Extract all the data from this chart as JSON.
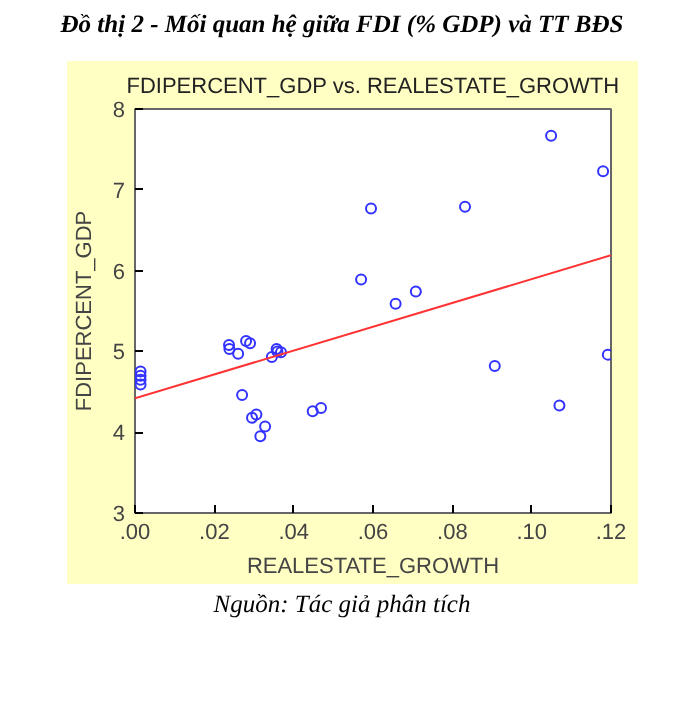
{
  "chart_data": {
    "type": "scatter",
    "title": "FDIPERCENT_GDP vs. REALESTATE_GROWTH",
    "xlabel": "REALESTATE_GROWTH",
    "ylabel": "FDIPERCENT_GDP",
    "annotations": [
      "Đồ thị 2 -  Mối quan hệ giữa FDI (% GDP) và TT BĐS",
      "Nguồn: Tác giả phân tích"
    ],
    "xlim": [
      0,
      0.12
    ],
    "ylim": [
      3,
      8
    ],
    "xticks": [
      {
        "value": 0,
        "label": ".00"
      },
      {
        "value": 0.02,
        "label": ".02"
      },
      {
        "value": 0.04,
        "label": ".04"
      },
      {
        "value": 0.06,
        "label": ".06"
      },
      {
        "value": 0.08,
        "label": ".08"
      },
      {
        "value": 0.1,
        "label": ".10"
      },
      {
        "value": 0.12,
        "label": ".12"
      }
    ],
    "yticks": [
      3,
      4,
      5,
      6,
      7,
      8
    ],
    "grid": false,
    "series": [
      {
        "color": "#3333ff",
        "marker": "circle",
        "x": [
          0.0014,
          0.0014,
          0.0014,
          0.0014,
          0.0237,
          0.0238,
          0.026,
          0.028,
          0.029,
          0.027,
          0.0295,
          0.0306,
          0.0328,
          0.0316,
          0.0345,
          0.0357,
          0.0359,
          0.0368,
          0.0448,
          0.0469,
          0.057,
          0.0595,
          0.0657,
          0.0708,
          0.0832,
          0.0907,
          0.1049,
          0.107,
          0.118,
          0.1192
        ],
        "values": [
          4.75,
          4.7,
          4.65,
          4.59,
          5.08,
          5.03,
          4.97,
          5.13,
          5.1,
          4.46,
          4.18,
          4.22,
          4.07,
          3.95,
          4.93,
          5.03,
          5.0,
          4.99,
          4.26,
          4.3,
          5.89,
          6.77,
          5.59,
          5.74,
          6.79,
          4.82,
          7.67,
          4.33,
          7.23,
          4.96
        ]
      },
      {
        "type": "line",
        "color": "#ff3333",
        "x": [
          0,
          0.12
        ],
        "values": [
          4.42,
          6.19
        ]
      }
    ]
  }
}
